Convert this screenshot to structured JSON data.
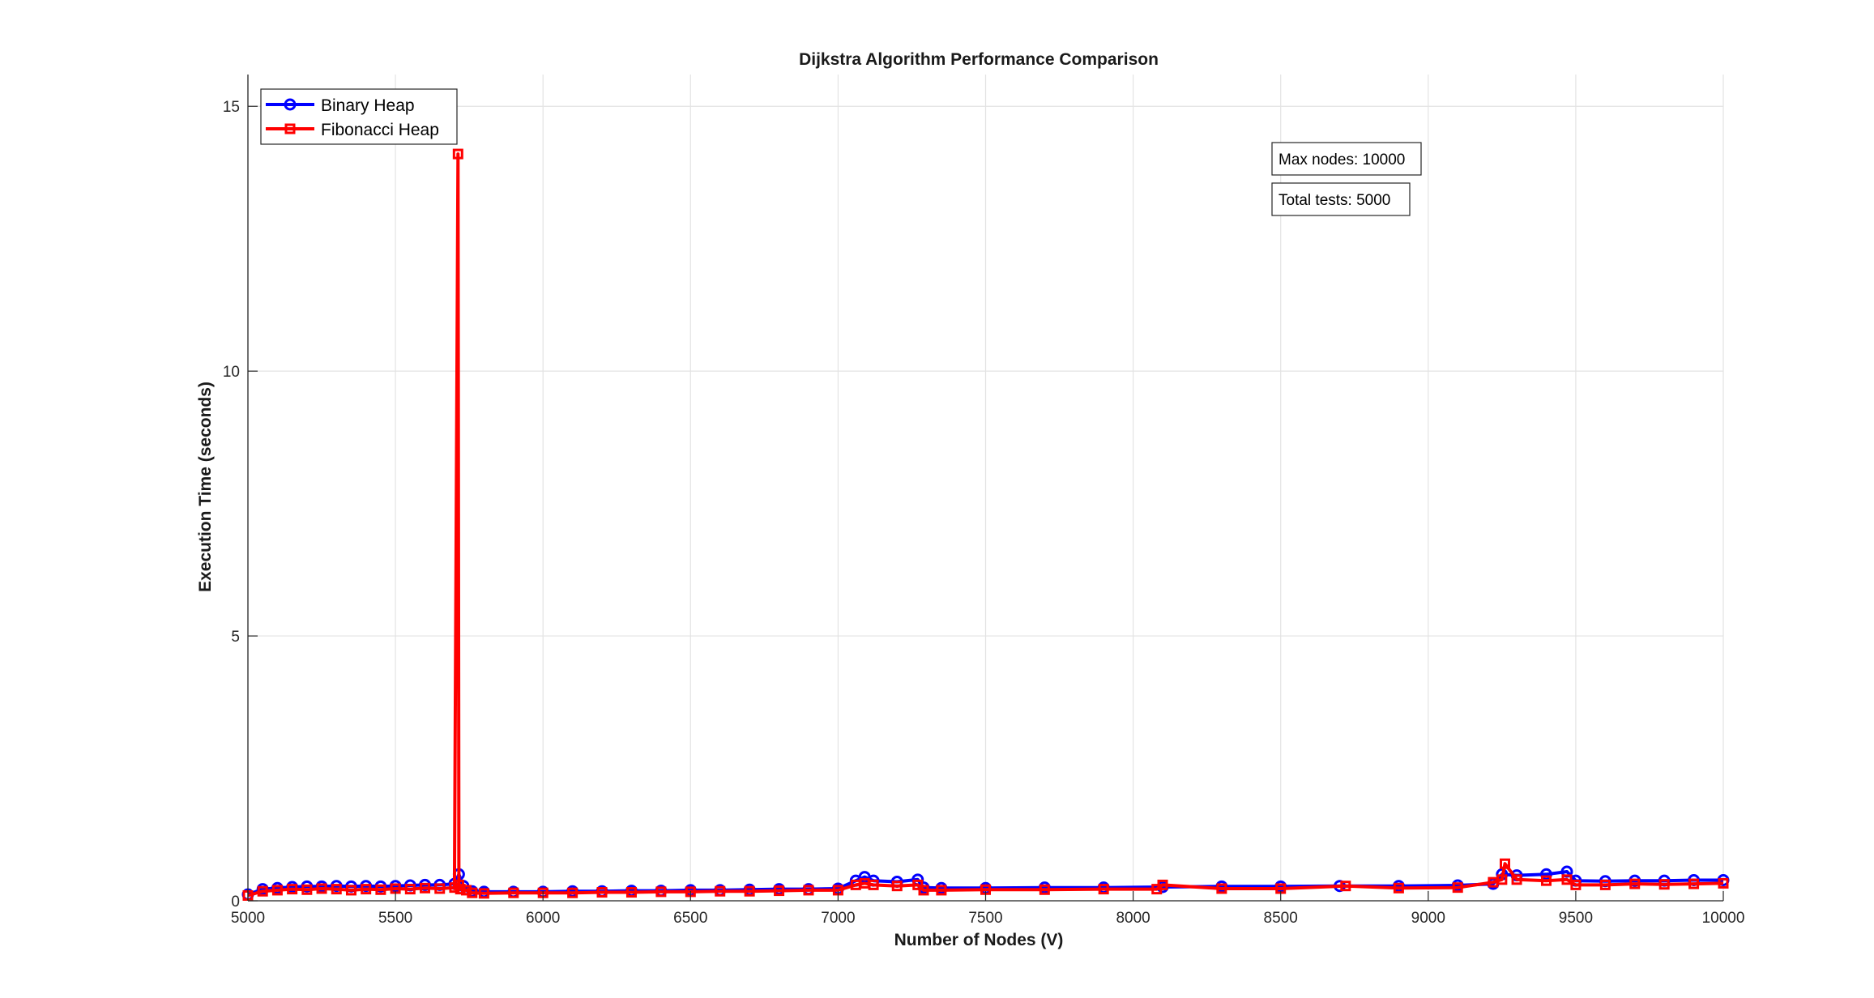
{
  "chart_data": {
    "type": "line",
    "title": "Dijkstra Algorithm Performance Comparison",
    "xlabel": "Number of Nodes (V)",
    "ylabel": "Execution Time (seconds)",
    "xlim": [
      5000,
      10000
    ],
    "ylim": [
      0,
      15.6
    ],
    "xticks": [
      5000,
      5500,
      6000,
      6500,
      7000,
      7500,
      8000,
      8500,
      9000,
      9500,
      10000
    ],
    "yticks": [
      0,
      5,
      10,
      15
    ],
    "grid": true,
    "legend_position": "top-left",
    "series": [
      {
        "name": "Binary Heap",
        "color": "#0000ff",
        "marker": "circle",
        "x": [
          5000,
          5050,
          5100,
          5150,
          5200,
          5250,
          5300,
          5350,
          5400,
          5450,
          5500,
          5550,
          5600,
          5650,
          5700,
          5715,
          5730,
          5760,
          5800,
          5900,
          6000,
          6100,
          6200,
          6300,
          6400,
          6500,
          6600,
          6700,
          6800,
          6900,
          7000,
          7060,
          7090,
          7120,
          7200,
          7270,
          7290,
          7350,
          7500,
          7700,
          7900,
          8100,
          8300,
          8500,
          8700,
          8900,
          9100,
          9220,
          9250,
          9300,
          9400,
          9470,
          9500,
          9600,
          9700,
          9800,
          9900,
          10000
        ],
        "y": [
          0.12,
          0.22,
          0.24,
          0.26,
          0.27,
          0.27,
          0.28,
          0.27,
          0.28,
          0.27,
          0.28,
          0.29,
          0.3,
          0.3,
          0.32,
          0.5,
          0.28,
          0.18,
          0.17,
          0.17,
          0.17,
          0.18,
          0.18,
          0.19,
          0.19,
          0.2,
          0.2,
          0.21,
          0.22,
          0.22,
          0.23,
          0.38,
          0.45,
          0.38,
          0.36,
          0.4,
          0.25,
          0.24,
          0.24,
          0.25,
          0.25,
          0.26,
          0.27,
          0.27,
          0.28,
          0.28,
          0.29,
          0.32,
          0.5,
          0.48,
          0.5,
          0.55,
          0.38,
          0.37,
          0.38,
          0.38,
          0.39,
          0.39
        ]
      },
      {
        "name": "Fibonacci Heap",
        "color": "#ff0000",
        "marker": "square",
        "x": [
          5000,
          5050,
          5100,
          5150,
          5200,
          5250,
          5300,
          5350,
          5400,
          5450,
          5500,
          5550,
          5600,
          5650,
          5700,
          5712,
          5715,
          5720,
          5740,
          5760,
          5800,
          5900,
          6000,
          6100,
          6200,
          6300,
          6400,
          6500,
          6600,
          6700,
          6800,
          6900,
          7000,
          7060,
          7090,
          7120,
          7200,
          7270,
          7290,
          7350,
          7500,
          7700,
          7900,
          8080,
          8100,
          8300,
          8500,
          8720,
          8900,
          9100,
          9220,
          9250,
          9260,
          9300,
          9400,
          9470,
          9500,
          9600,
          9700,
          9800,
          9900,
          10000
        ],
        "y": [
          0.1,
          0.18,
          0.2,
          0.22,
          0.21,
          0.23,
          0.22,
          0.2,
          0.22,
          0.21,
          0.23,
          0.22,
          0.24,
          0.23,
          0.25,
          14.1,
          0.3,
          0.22,
          0.2,
          0.15,
          0.14,
          0.15,
          0.15,
          0.15,
          0.16,
          0.16,
          0.17,
          0.17,
          0.18,
          0.18,
          0.19,
          0.2,
          0.2,
          0.3,
          0.33,
          0.3,
          0.28,
          0.3,
          0.2,
          0.2,
          0.21,
          0.21,
          0.22,
          0.22,
          0.3,
          0.23,
          0.23,
          0.28,
          0.24,
          0.25,
          0.35,
          0.4,
          0.7,
          0.4,
          0.38,
          0.4,
          0.3,
          0.3,
          0.32,
          0.31,
          0.32,
          0.33
        ]
      }
    ],
    "annotations": [
      "Max nodes: 10000",
      "Total tests: 5000"
    ]
  }
}
